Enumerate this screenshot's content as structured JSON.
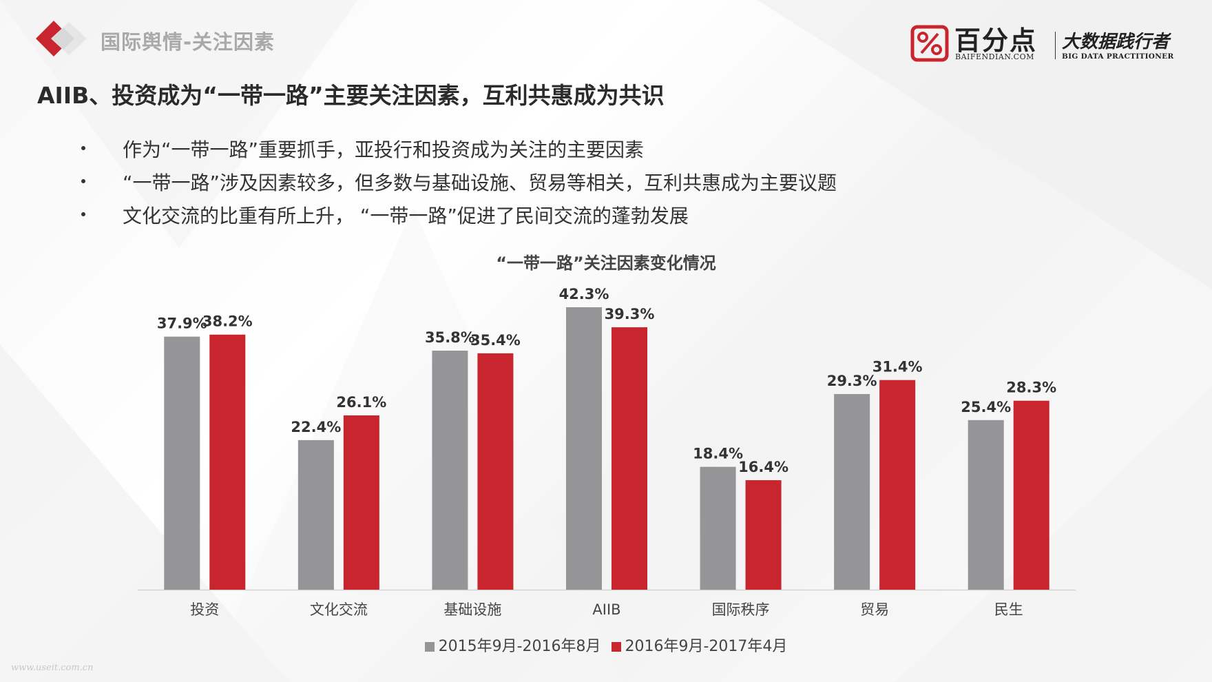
{
  "header": {
    "section_title": "国际舆情-关注因素",
    "brand": {
      "name": "百分点",
      "domain": "BAIFENDIAN.COM",
      "slogan": "大数据践行者",
      "slogan_en": "BIG DATA PRACTITIONER",
      "accent": "#c8252f"
    }
  },
  "headline": "AIIB、投资成为“一带一路”主要关注因素，互利共惠成为共识",
  "bullets": [
    "作为“一带一路”重要抓手，亚投行和投资成为关注的主要因素",
    " “一带一路”涉及因素较多，但多数与基础设施、贸易等相关，互利共惠成为主要议题",
    "文化交流的比重有所上升， “一带一路”促进了民间交流的蓬勃发展"
  ],
  "chart_data": {
    "type": "bar",
    "title": "“一带一路”关注因素变化情况",
    "categories": [
      "投资",
      "文化交流",
      "基础设施",
      "AIIB",
      "国际秩序",
      "贸易",
      "民生"
    ],
    "series": [
      {
        "name": "2015年9月-2016年8月",
        "color": "#959598",
        "values": [
          37.9,
          22.4,
          35.8,
          42.3,
          18.4,
          29.3,
          25.4
        ]
      },
      {
        "name": "2016年9月-2017年4月",
        "color": "#c8252f",
        "values": [
          38.2,
          26.1,
          35.4,
          39.3,
          16.4,
          31.4,
          28.3
        ]
      }
    ],
    "value_suffix": "%",
    "ylim": [
      0,
      42.3
    ],
    "grid": false,
    "legend_position": "bottom"
  },
  "watermark": "www.useit.com.cn"
}
